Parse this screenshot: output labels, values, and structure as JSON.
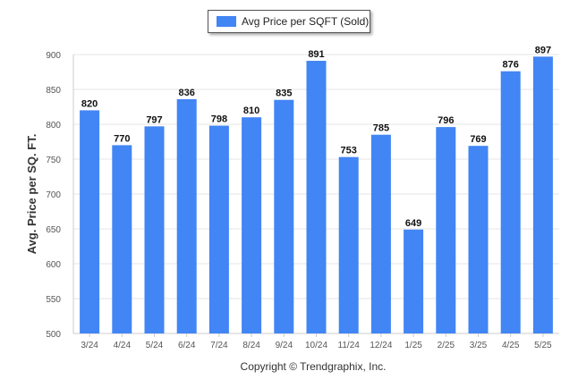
{
  "chart_data": {
    "type": "bar",
    "categories": [
      "3/24",
      "4/24",
      "5/24",
      "6/24",
      "7/24",
      "8/24",
      "9/24",
      "10/24",
      "11/24",
      "12/24",
      "1/25",
      "2/25",
      "3/25",
      "4/25",
      "5/25"
    ],
    "series": [
      {
        "name": "Avg Price per SQFT (Sold)",
        "values": [
          820,
          770,
          797,
          836,
          798,
          810,
          835,
          891,
          753,
          785,
          649,
          796,
          769,
          876,
          897
        ]
      }
    ],
    "ylabel": "Avg. Price per SQ. FT.",
    "xlabel": "",
    "ylim": [
      500,
      900
    ],
    "yticks": [
      "500",
      "550",
      "600",
      "650",
      "700",
      "750",
      "800",
      "850",
      "900"
    ],
    "grid": true,
    "legend_position": "top-center",
    "data_labels": [
      "820",
      "770",
      "797",
      "836",
      "798",
      "810",
      "835",
      "891",
      "753",
      "785",
      "649",
      "796",
      "769",
      "876",
      "897"
    ]
  },
  "colors": {
    "bar": "#4285f4",
    "grid": "#e6e6e6",
    "axis": "#cccccc"
  },
  "footer": {
    "copyright": "Copyright © Trendgraphix, Inc."
  }
}
